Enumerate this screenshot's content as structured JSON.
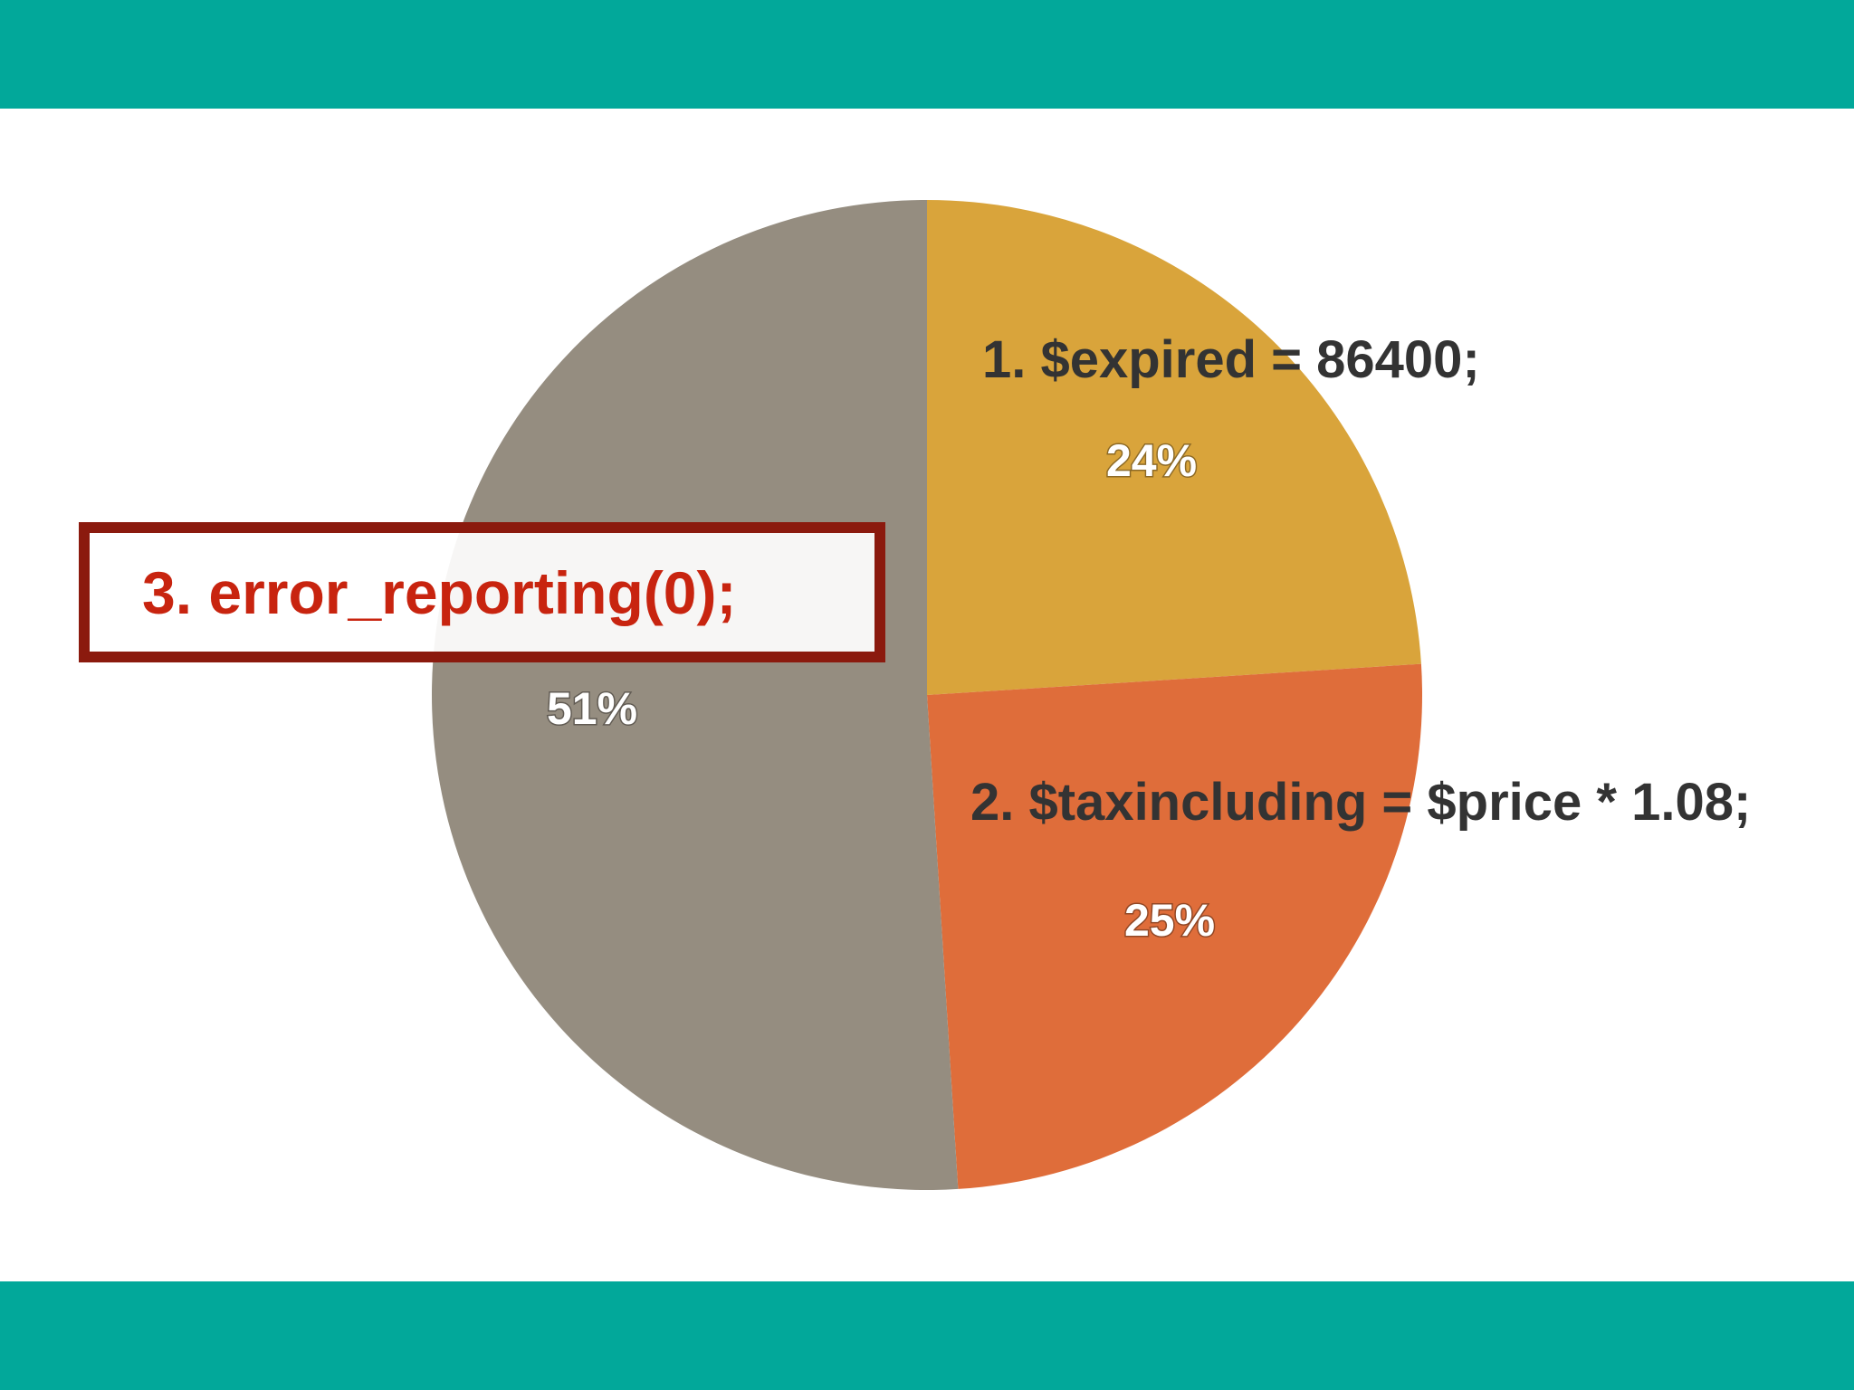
{
  "chart_data": {
    "type": "pie",
    "slices": [
      {
        "label": "1.  $expired = 86400;",
        "value": 24,
        "percent_label": "24%",
        "color": "#d9a43b"
      },
      {
        "label": "2.  $taxincluding = $price * 1.08;",
        "value": 25,
        "percent_label": "25%",
        "color": "#df6d3a"
      },
      {
        "label": "3.  error_reporting(0);",
        "value": 51,
        "percent_label": "51%",
        "color": "#958d80"
      }
    ],
    "highlighted_slice": 2,
    "highlight_color": "#8b1a0e",
    "highlight_text_color": "#c8240f"
  },
  "theme": {
    "band_color": "#02a89a",
    "background": "#ffffff"
  }
}
